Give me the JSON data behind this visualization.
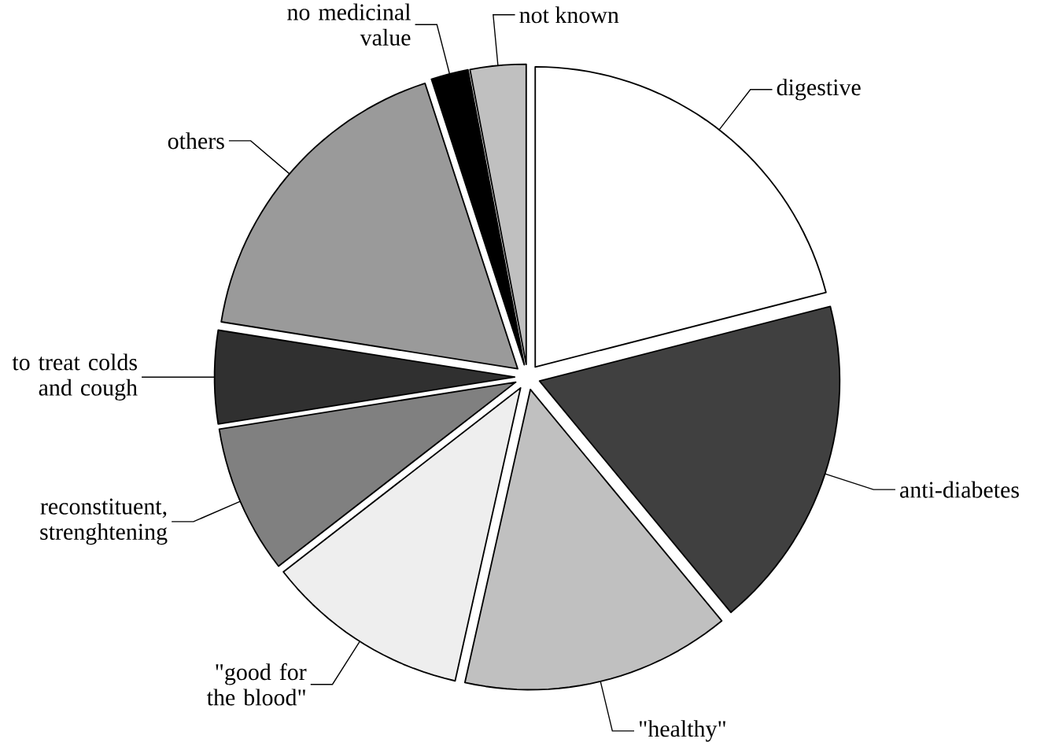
{
  "chart_data": {
    "type": "pie",
    "categories": [
      "digestive",
      "anti-diabetes",
      "\"healthy\"",
      "\"good for the blood\"",
      "reconstituent, strenghtening",
      "to treat colds and cough",
      "others",
      "no medicinal value",
      "not known"
    ],
    "values": [
      21,
      18,
      14.5,
      11,
      8,
      5,
      17.5,
      2,
      3
    ],
    "colors": [
      "#ffffff",
      "#404040",
      "#c0c0c0",
      "#eeeeee",
      "#808080",
      "#303030",
      "#9a9a9a",
      "#000000",
      "#c0c0c0"
    ]
  }
}
